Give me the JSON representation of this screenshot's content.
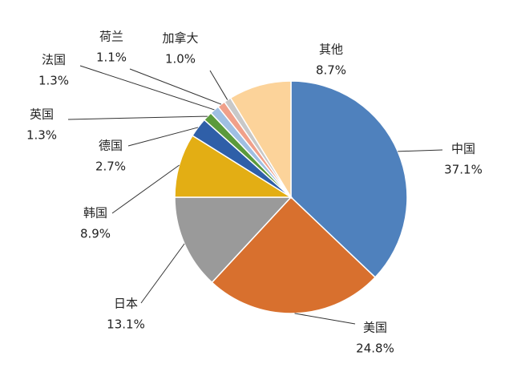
{
  "chart_data": {
    "type": "pie",
    "categories": [
      "中国",
      "美国",
      "日本",
      "韩国",
      "德国",
      "英国",
      "法国",
      "荷兰",
      "加拿大",
      "其他"
    ],
    "values": [
      37.1,
      24.8,
      13.1,
      8.9,
      2.7,
      1.3,
      1.3,
      1.1,
      1.0,
      8.7
    ],
    "value_labels": [
      "37.1%",
      "24.8%",
      "13.1%",
      "8.9%",
      "2.7%",
      "1.3%",
      "1.3%",
      "1.1%",
      "1.0%",
      "8.7%"
    ],
    "colors": [
      "#4f81bd",
      "#d8702e",
      "#9a9a9a",
      "#e3ae14",
      "#2f5fa8",
      "#5b9a3c",
      "#9fbfe3",
      "#f0a08a",
      "#c8c8c8",
      "#fcd39a"
    ]
  }
}
